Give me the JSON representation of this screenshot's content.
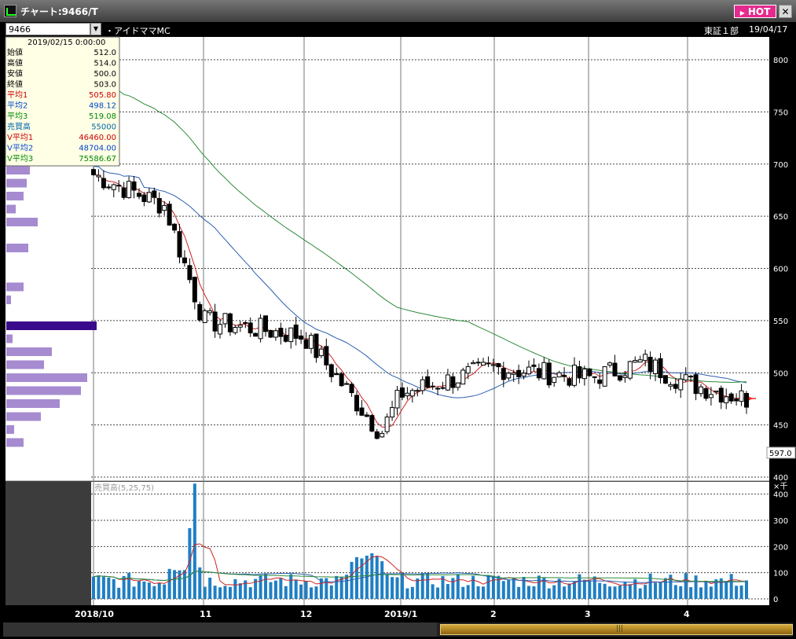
{
  "window": {
    "title": "チャート:9466/T",
    "hot_label": "HOT",
    "close_label": "✕",
    "icon": "chart-app-icon"
  },
  "toolbar": {
    "symbol": "9466",
    "dropdown_icon": "chevron-down-icon",
    "company": "・アイドママMC",
    "market": "東証１部",
    "date": "19/04/17"
  },
  "ohlc_panel": {
    "date": "2019/02/15 0:00:00",
    "rows": [
      {
        "label": "始値",
        "value": "512.0",
        "color": "#000000"
      },
      {
        "label": "高値",
        "value": "514.0",
        "color": "#000000"
      },
      {
        "label": "安値",
        "value": "500.0",
        "color": "#000000"
      },
      {
        "label": "終値",
        "value": "503.0",
        "color": "#000000"
      },
      {
        "label": "平均1",
        "value": "505.80",
        "color": "#cc0000"
      },
      {
        "label": "平均2",
        "value": "498.12",
        "color": "#0044cc"
      },
      {
        "label": "平均3",
        "value": "519.08",
        "color": "#008800"
      },
      {
        "label": "売買高",
        "value": "55000",
        "color": "#0066aa"
      },
      {
        "label": "V平均1",
        "value": "46460.00",
        "color": "#cc0000"
      },
      {
        "label": "V平均2",
        "value": "48704.00",
        "color": "#0044cc"
      },
      {
        "label": "V平均3",
        "value": "75586.67",
        "color": "#008800"
      }
    ]
  },
  "chart_data": [
    {
      "type": "candlestick",
      "price_axis": {
        "ticks": [
          800,
          750,
          700,
          650,
          600,
          550,
          500,
          450,
          400
        ],
        "range": [
          400,
          800
        ]
      },
      "current_price_label": "597.0",
      "date_labels": [
        "2018/10",
        "11",
        "12",
        "2019/1",
        "2",
        "3",
        "4"
      ],
      "key_points": [
        {
          "x": "2018/10",
          "close": 690
        },
        {
          "x": "10-mid",
          "close": 660
        },
        {
          "x": "11-start",
          "close": 550
        },
        {
          "x": "12-start",
          "close": 535
        },
        {
          "x": "12-late",
          "close": 442
        },
        {
          "x": "2019/1",
          "close": 480
        },
        {
          "x": "2",
          "close": 505
        },
        {
          "x": "3",
          "close": 495
        },
        {
          "x": "3-late",
          "close": 510
        },
        {
          "x": "4",
          "close": 490
        },
        {
          "x": "4-mid",
          "close": 475
        }
      ],
      "moving_averages": [
        {
          "name": "平均1",
          "color": "#cc2222"
        },
        {
          "name": "平均2",
          "color": "#2a5fb0"
        },
        {
          "name": "平均3",
          "color": "#2e8b3a"
        }
      ],
      "volume_profile_color": "#a68bd0",
      "volume_profile_highlight": "#3a0a8c"
    },
    {
      "type": "bar",
      "panel_label": "売買高(5,25,75)",
      "unit_label": "×千",
      "volume_axis": {
        "ticks": [
          400,
          300,
          200,
          100,
          0
        ],
        "range": [
          0,
          420
        ]
      },
      "peak_volume_label": "380"
    }
  ],
  "scrollbar": {
    "grip_label": "|||"
  }
}
